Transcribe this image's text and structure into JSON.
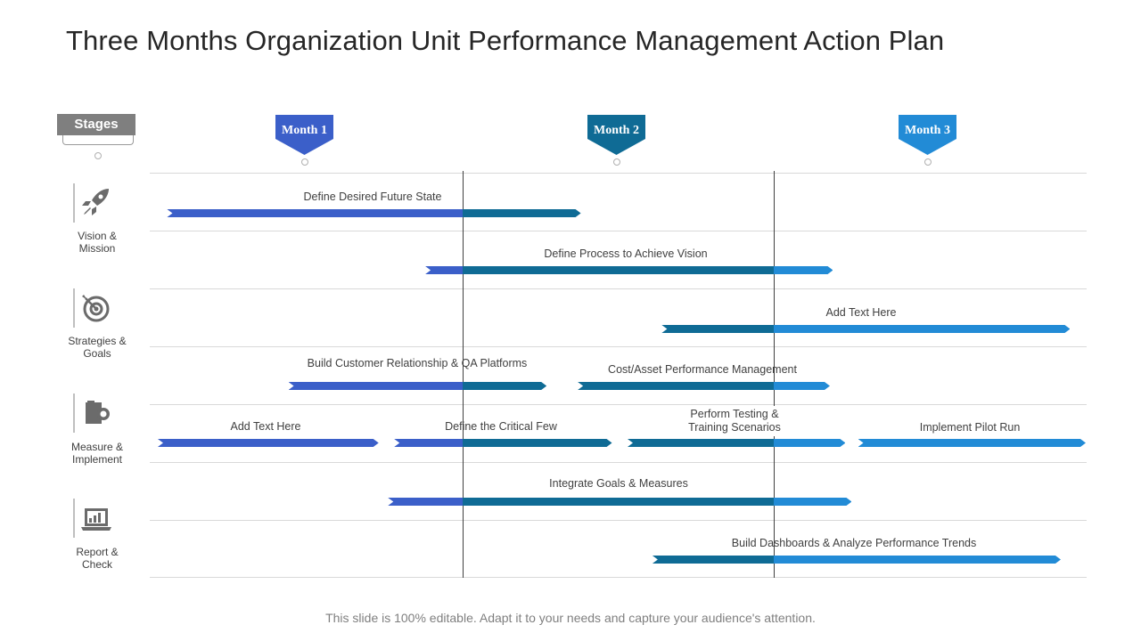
{
  "title": "Three Months Organization Unit Performance Management Action Plan",
  "footer": "This slide is 100% editable. Adapt it to your needs and capture your audience's attention.",
  "colors": {
    "month1": "#3b5fc9",
    "month2": "#0f6b95",
    "month3": "#228bd6",
    "divider": "#404040",
    "grid": "#d9d9d9",
    "stages_box": "#7f7f7f"
  },
  "stages_header": "Stages",
  "months": [
    "Month 1",
    "Month 2",
    "Month 3"
  ],
  "stages": [
    {
      "icon": "rocket-icon",
      "label_lines": [
        "Vision &",
        "Mission"
      ]
    },
    {
      "icon": "target-icon",
      "label_lines": [
        "Strategies &",
        "Goals"
      ]
    },
    {
      "icon": "scroll-icon",
      "label_lines": [
        "Measure &",
        "Implement"
      ]
    },
    {
      "icon": "laptop-chart-icon",
      "label_lines": [
        "Report &",
        "Check"
      ]
    }
  ],
  "tasks": [
    {
      "label_lines": [
        "Define Desired Future State"
      ],
      "start_month": 0.05,
      "end_month": 1.38
    },
    {
      "label_lines": [
        "Define Process to Achieve Vision"
      ],
      "start_month": 0.88,
      "end_month": 2.19
    },
    {
      "label_lines": [
        "Add Text Here"
      ],
      "start_month": 1.64,
      "end_month": 2.95
    },
    {
      "label_lines": [
        "Build Customer Relationship & QA Platforms"
      ],
      "start_month": 0.44,
      "end_month": 1.27
    },
    {
      "label_lines": [
        "Cost/Asset Performance Management"
      ],
      "start_month": 1.37,
      "end_month": 2.18
    },
    {
      "label_lines": [
        "Add Text Here"
      ],
      "start_month": 0.02,
      "end_month": 0.73
    },
    {
      "label_lines": [
        "Define the Critical Few"
      ],
      "start_month": 0.78,
      "end_month": 1.48
    },
    {
      "label_lines": [
        "Perform Testing &",
        "Training Scenarios"
      ],
      "start_month": 1.53,
      "end_month": 2.23
    },
    {
      "label_lines": [
        "Implement Pilot Run"
      ],
      "start_month": 2.27,
      "end_month": 3.0
    },
    {
      "label_lines": [
        "Integrate Goals & Measures"
      ],
      "start_month": 0.76,
      "end_month": 2.25
    },
    {
      "label_lines": [
        "Build Dashboards & Analyze Performance Trends"
      ],
      "start_month": 1.61,
      "end_month": 2.92
    }
  ]
}
